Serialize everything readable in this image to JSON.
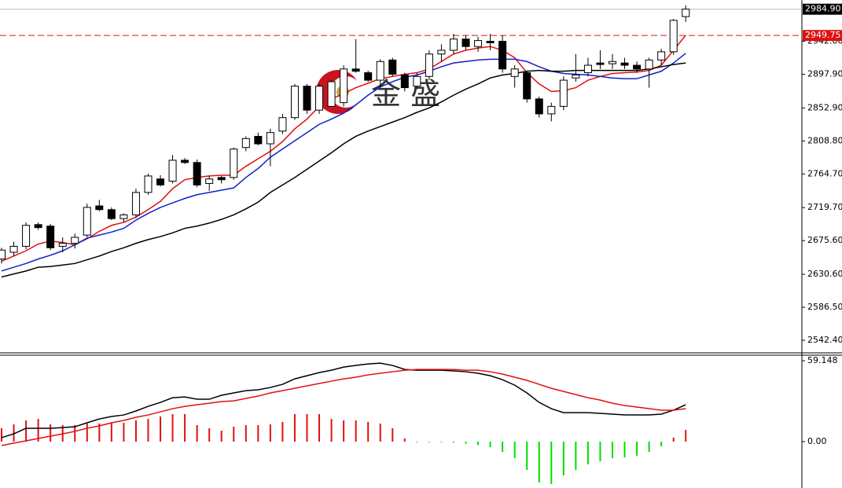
{
  "chart_data": [
    {
      "type": "candlestick",
      "ylim": [
        2525.6,
        2997.2
      ],
      "yticks": [
        {
          "value": 2942,
          "label": "2942.00"
        },
        {
          "value": 2897.9,
          "label": "2897.90"
        },
        {
          "value": 2852.9,
          "label": "2852.90"
        },
        {
          "value": 2808.8,
          "label": "2808.80"
        },
        {
          "value": 2764.7,
          "label": "2764.70"
        },
        {
          "value": 2719.7,
          "label": "2719.70"
        },
        {
          "value": 2675.6,
          "label": "2675.60"
        },
        {
          "value": 2630.6,
          "label": "2630.60"
        },
        {
          "value": 2586.5,
          "label": "2586.50"
        },
        {
          "value": 2542.4,
          "label": "2542.40"
        }
      ],
      "current_price": {
        "value": 2984.9,
        "label": "2984.90"
      },
      "alert_line": {
        "value": 2949.75,
        "label": "2949.75"
      },
      "watermark": "金 盛",
      "up_color": "#ffffff",
      "down_color": "#000000",
      "open": [
        2651,
        2660,
        2668,
        2697,
        2695,
        2668,
        2672,
        2683,
        2722,
        2717,
        2705,
        2710,
        2740,
        2758,
        2755,
        2783,
        2780,
        2752,
        2760,
        2760,
        2800,
        2815,
        2805,
        2822,
        2840,
        2882,
        2850,
        2855,
        2860,
        2905,
        2900,
        2890,
        2917,
        2897,
        2882,
        2895,
        2925,
        2930,
        2945,
        2935,
        2942,
        2942,
        2895,
        2900,
        2865,
        2845,
        2855,
        2893,
        2900,
        2913,
        2912,
        2913,
        2910,
        2905,
        2917,
        2928,
        2975
      ],
      "high": [
        2666,
        2674,
        2700,
        2700,
        2698,
        2680,
        2685,
        2725,
        2730,
        2720,
        2712,
        2745,
        2765,
        2763,
        2790,
        2786,
        2784,
        2762,
        2762,
        2800,
        2815,
        2820,
        2825,
        2845,
        2885,
        2885,
        2885,
        2890,
        2910,
        2945,
        2903,
        2918,
        2920,
        2900,
        2900,
        2930,
        2938,
        2952,
        2950,
        2948,
        2952,
        2950,
        2910,
        2903,
        2868,
        2860,
        2895,
        2925,
        2920,
        2930,
        2925,
        2920,
        2915,
        2920,
        2932,
        2972,
        2990
      ],
      "low": [
        2645,
        2655,
        2664,
        2690,
        2663,
        2660,
        2665,
        2680,
        2715,
        2703,
        2700,
        2706,
        2737,
        2748,
        2752,
        2778,
        2747,
        2742,
        2752,
        2757,
        2795,
        2803,
        2775,
        2818,
        2837,
        2845,
        2845,
        2855,
        2855,
        2900,
        2888,
        2880,
        2895,
        2875,
        2878,
        2890,
        2915,
        2925,
        2930,
        2928,
        2930,
        2900,
        2880,
        2860,
        2840,
        2835,
        2850,
        2888,
        2895,
        2905,
        2905,
        2905,
        2900,
        2880,
        2910,
        2924,
        2968
      ],
      "close": [
        2663,
        2668,
        2696,
        2693,
        2666,
        2672,
        2680,
        2720,
        2717,
        2705,
        2710,
        2740,
        2762,
        2750,
        2783,
        2780,
        2750,
        2758,
        2757,
        2798,
        2812,
        2805,
        2820,
        2840,
        2882,
        2850,
        2882,
        2888,
        2905,
        2902,
        2890,
        2915,
        2898,
        2880,
        2895,
        2925,
        2930,
        2945,
        2935,
        2943,
        2940,
        2905,
        2905,
        2865,
        2845,
        2855,
        2890,
        2897,
        2910,
        2911,
        2915,
        2910,
        2905,
        2917,
        2928,
        2970,
        2985
      ],
      "overlays": [
        {
          "color": "#e01010",
          "values": [
            2648,
            2655,
            2662,
            2671,
            2675,
            2673,
            2670,
            2678,
            2688,
            2696,
            2700,
            2707,
            2717,
            2728,
            2745,
            2757,
            2760,
            2762,
            2763,
            2763,
            2775,
            2785,
            2795,
            2808,
            2825,
            2838,
            2855,
            2865,
            2872,
            2880,
            2886,
            2892,
            2895,
            2898,
            2900,
            2905,
            2915,
            2925,
            2930,
            2933,
            2935,
            2930,
            2920,
            2900,
            2885,
            2875,
            2876,
            2880,
            2890,
            2895,
            2899,
            2900,
            2901,
            2903,
            2910,
            2930,
            2950
          ]
        },
        {
          "color": "#1020c8",
          "values": [
            2635,
            2640,
            2645,
            2651,
            2656,
            2662,
            2670,
            2679,
            2683,
            2687,
            2692,
            2703,
            2712,
            2720,
            2726,
            2732,
            2737,
            2740,
            2743,
            2746,
            2760,
            2772,
            2787,
            2798,
            2809,
            2820,
            2831,
            2838,
            2846,
            2857,
            2870,
            2881,
            2888,
            2894,
            2897,
            2902,
            2908,
            2913,
            2915,
            2917,
            2918,
            2918,
            2918,
            2915,
            2908,
            2902,
            2899,
            2898,
            2897,
            2895,
            2893,
            2892,
            2892,
            2897,
            2902,
            2913,
            2926
          ]
        },
        {
          "color": "#000000",
          "values": [
            2627,
            2631,
            2635,
            2640,
            2641,
            2643,
            2645,
            2650,
            2655,
            2661,
            2666,
            2672,
            2677,
            2681,
            2686,
            2692,
            2695,
            2699,
            2704,
            2710,
            2718,
            2727,
            2740,
            2750,
            2760,
            2771,
            2782,
            2793,
            2805,
            2815,
            2822,
            2828,
            2834,
            2840,
            2847,
            2853,
            2861,
            2870,
            2878,
            2885,
            2893,
            2897,
            2899,
            2902,
            2903,
            2902,
            2902,
            2903,
            2903,
            2903,
            2903,
            2903,
            2903,
            2905,
            2908,
            2911,
            2913
          ]
        }
      ]
    },
    {
      "type": "macd",
      "ylim": [
        -33.9,
        63.2
      ],
      "yticks": [
        59.148,
        {
          "value": 0,
          "label": "0.00"
        }
      ],
      "up_color": "#e01010",
      "down_color": "#00dd00",
      "histogram": [
        9.8,
        12.6,
        15.5,
        16.6,
        12.6,
        12.1,
        12.1,
        13.2,
        13.2,
        13.8,
        13.8,
        15.5,
        16.6,
        18.4,
        20.1,
        20.1,
        12.1,
        9.8,
        8.0,
        10.9,
        12.1,
        12.1,
        12.6,
        14.4,
        20.1,
        20.1,
        20.1,
        16.6,
        15.5,
        15.5,
        14.4,
        13.2,
        9.8,
        2.3,
        -0.5,
        -0.5,
        -0.5,
        -0.8,
        -1.5,
        -2.5,
        -4.0,
        -7.5,
        -12.1,
        -20.7,
        -29.9,
        -31.0,
        -24.7,
        -20.7,
        -16.6,
        -14.4,
        -12.1,
        -11.5,
        -10.3,
        -7.5,
        -3.4,
        2.9,
        8.6
      ],
      "lines": [
        {
          "color": "#000000",
          "values": [
            2.9,
            5.7,
            9.8,
            9.8,
            9.8,
            10.3,
            10.9,
            13.8,
            16.6,
            18.4,
            19.5,
            22.4,
            25.8,
            28.7,
            32.1,
            32.7,
            31.0,
            31.0,
            33.9,
            35.6,
            37.3,
            37.9,
            39.6,
            41.9,
            45.9,
            48.2,
            50.5,
            52.2,
            54.5,
            55.7,
            56.8,
            57.4,
            55.7,
            52.8,
            52.2,
            52.2,
            52.2,
            51.7,
            51.1,
            50.0,
            48.2,
            45.3,
            41.3,
            35.6,
            28.7,
            24.1,
            21.2,
            21.2,
            21.2,
            20.7,
            20.1,
            19.5,
            19.5,
            19.5,
            20.1,
            23.0,
            27.0
          ]
        },
        {
          "color": "#e01010",
          "values": [
            -2.9,
            -1.1,
            0.6,
            2.3,
            4.0,
            5.7,
            7.5,
            9.8,
            11.5,
            13.8,
            15.5,
            17.8,
            19.5,
            21.8,
            24.1,
            25.8,
            27.0,
            28.1,
            29.3,
            29.8,
            31.6,
            33.3,
            35.6,
            37.3,
            39.0,
            40.8,
            42.5,
            44.2,
            45.9,
            47.1,
            48.8,
            50.0,
            51.1,
            52.2,
            52.8,
            52.8,
            52.8,
            52.8,
            52.2,
            52.2,
            51.1,
            49.4,
            47.1,
            44.8,
            41.9,
            39.0,
            36.7,
            34.4,
            32.1,
            30.4,
            28.1,
            26.4,
            25.3,
            24.1,
            23.0,
            23.0,
            24.1
          ]
        }
      ]
    }
  ]
}
